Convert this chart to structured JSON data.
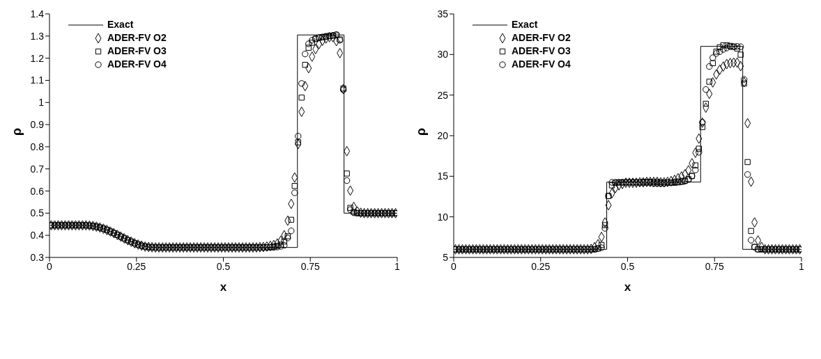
{
  "chart_data": [
    {
      "type": "scatter",
      "xlabel": "x",
      "ylabel": "ρ",
      "xlim": [
        0,
        1
      ],
      "ylim": [
        0.3,
        1.4
      ],
      "xticks": [
        0,
        0.25,
        0.5,
        0.75,
        1
      ],
      "yticks": [
        0.3,
        0.4,
        0.5,
        0.6,
        0.7,
        0.8,
        0.9,
        1,
        1.1,
        1.2,
        1.3,
        1.4
      ],
      "legend": "top left",
      "x": [
        0.005,
        0.015,
        0.025,
        0.035,
        0.045,
        0.055,
        0.065,
        0.075,
        0.085,
        0.095,
        0.105,
        0.115,
        0.125,
        0.135,
        0.145,
        0.155,
        0.165,
        0.175,
        0.185,
        0.195,
        0.205,
        0.215,
        0.225,
        0.235,
        0.245,
        0.255,
        0.265,
        0.275,
        0.285,
        0.295,
        0.305,
        0.315,
        0.325,
        0.335,
        0.345,
        0.355,
        0.365,
        0.375,
        0.385,
        0.395,
        0.405,
        0.415,
        0.425,
        0.435,
        0.445,
        0.455,
        0.465,
        0.475,
        0.485,
        0.495,
        0.505,
        0.515,
        0.525,
        0.535,
        0.545,
        0.555,
        0.565,
        0.575,
        0.585,
        0.595,
        0.605,
        0.615,
        0.625,
        0.635,
        0.645,
        0.655,
        0.665,
        0.675,
        0.685,
        0.695,
        0.705,
        0.715,
        0.725,
        0.735,
        0.745,
        0.755,
        0.765,
        0.775,
        0.785,
        0.795,
        0.805,
        0.815,
        0.825,
        0.835,
        0.845,
        0.855,
        0.865,
        0.875,
        0.885,
        0.895,
        0.905,
        0.915,
        0.925,
        0.935,
        0.945,
        0.955,
        0.965,
        0.975,
        0.985,
        0.995
      ],
      "series": [
        {
          "name": "Exact",
          "type": "line",
          "color": "#000000",
          "marker": "none",
          "line_style": "solid",
          "x": [
            0,
            0.105,
            0.125,
            0.145,
            0.165,
            0.185,
            0.205,
            0.225,
            0.245,
            0.265,
            0.285,
            0.305,
            0.713,
            0.713,
            0.847,
            0.847,
            1
          ],
          "values": [
            0.445,
            0.445,
            0.442,
            0.435,
            0.424,
            0.41,
            0.394,
            0.378,
            0.364,
            0.353,
            0.347,
            0.345,
            0.345,
            1.305,
            1.305,
            0.5,
            0.5
          ]
        },
        {
          "name": "ADER-FV O2",
          "type": "scatter",
          "color": "#000000",
          "marker": "diamond",
          "values": [
            0.445,
            0.445,
            0.445,
            0.445,
            0.445,
            0.445,
            0.445,
            0.445,
            0.445,
            0.445,
            0.445,
            0.444,
            0.442,
            0.439,
            0.435,
            0.43,
            0.424,
            0.417,
            0.41,
            0.402,
            0.394,
            0.386,
            0.378,
            0.371,
            0.364,
            0.358,
            0.353,
            0.349,
            0.347,
            0.346,
            0.345,
            0.345,
            0.345,
            0.345,
            0.345,
            0.345,
            0.345,
            0.345,
            0.345,
            0.345,
            0.345,
            0.345,
            0.345,
            0.345,
            0.345,
            0.345,
            0.345,
            0.345,
            0.345,
            0.345,
            0.345,
            0.345,
            0.345,
            0.345,
            0.345,
            0.345,
            0.345,
            0.345,
            0.345,
            0.345,
            0.346,
            0.347,
            0.349,
            0.352,
            0.356,
            0.363,
            0.375,
            0.4,
            0.466,
            0.542,
            0.661,
            0.812,
            0.958,
            1.074,
            1.155,
            1.207,
            1.241,
            1.264,
            1.279,
            1.289,
            1.295,
            1.295,
            1.277,
            1.223,
            1.061,
            0.78,
            0.602,
            0.528,
            0.508,
            0.502,
            0.5,
            0.5,
            0.5,
            0.5,
            0.5,
            0.5,
            0.5,
            0.5,
            0.5,
            0.5
          ]
        },
        {
          "name": "ADER-FV O3",
          "type": "scatter",
          "color": "#000000",
          "marker": "square",
          "values": [
            0.445,
            0.445,
            0.445,
            0.445,
            0.445,
            0.445,
            0.445,
            0.445,
            0.445,
            0.445,
            0.445,
            0.444,
            0.442,
            0.439,
            0.435,
            0.43,
            0.424,
            0.417,
            0.41,
            0.402,
            0.394,
            0.386,
            0.378,
            0.371,
            0.364,
            0.358,
            0.353,
            0.349,
            0.347,
            0.346,
            0.345,
            0.345,
            0.345,
            0.345,
            0.345,
            0.345,
            0.345,
            0.345,
            0.345,
            0.345,
            0.345,
            0.345,
            0.345,
            0.345,
            0.345,
            0.345,
            0.345,
            0.345,
            0.345,
            0.345,
            0.345,
            0.345,
            0.345,
            0.345,
            0.345,
            0.345,
            0.345,
            0.345,
            0.345,
            0.345,
            0.345,
            0.345,
            0.346,
            0.347,
            0.349,
            0.352,
            0.358,
            0.372,
            0.396,
            0.47,
            0.623,
            0.82,
            1.022,
            1.17,
            1.247,
            1.27,
            1.287,
            1.292,
            1.295,
            1.297,
            1.3,
            1.302,
            1.303,
            1.285,
            1.063,
            0.679,
            0.524,
            0.505,
            0.5,
            0.5,
            0.5,
            0.5,
            0.5,
            0.5,
            0.5,
            0.5,
            0.5,
            0.5,
            0.5,
            0.5
          ]
        },
        {
          "name": "ADER-FV O4",
          "type": "scatter",
          "color": "#000000",
          "marker": "circle",
          "values": [
            0.445,
            0.445,
            0.445,
            0.445,
            0.445,
            0.445,
            0.445,
            0.445,
            0.445,
            0.445,
            0.445,
            0.444,
            0.442,
            0.439,
            0.435,
            0.43,
            0.424,
            0.417,
            0.41,
            0.402,
            0.394,
            0.386,
            0.378,
            0.371,
            0.364,
            0.358,
            0.353,
            0.349,
            0.347,
            0.346,
            0.345,
            0.345,
            0.345,
            0.345,
            0.345,
            0.345,
            0.345,
            0.345,
            0.345,
            0.345,
            0.345,
            0.345,
            0.345,
            0.345,
            0.345,
            0.345,
            0.345,
            0.345,
            0.345,
            0.345,
            0.345,
            0.345,
            0.345,
            0.345,
            0.345,
            0.345,
            0.345,
            0.345,
            0.345,
            0.345,
            0.345,
            0.345,
            0.345,
            0.345,
            0.345,
            0.347,
            0.35,
            0.355,
            0.388,
            0.42,
            0.592,
            0.848,
            1.086,
            1.219,
            1.265,
            1.281,
            1.289,
            1.293,
            1.296,
            1.299,
            1.301,
            1.303,
            1.307,
            1.281,
            1.057,
            0.647,
            0.516,
            0.502,
            0.5,
            0.5,
            0.5,
            0.5,
            0.5,
            0.5,
            0.5,
            0.5,
            0.5,
            0.5,
            0.5,
            0.5
          ]
        }
      ]
    },
    {
      "type": "scatter",
      "xlabel": "x",
      "ylabel": "ρ",
      "xlim": [
        0,
        1
      ],
      "ylim": [
        5,
        35
      ],
      "xticks": [
        0,
        0.25,
        0.5,
        0.75,
        1
      ],
      "yticks": [
        5,
        10,
        15,
        20,
        25,
        30,
        35
      ],
      "legend": "top left",
      "x": [
        0.005,
        0.015,
        0.025,
        0.035,
        0.045,
        0.055,
        0.065,
        0.075,
        0.085,
        0.095,
        0.105,
        0.115,
        0.125,
        0.135,
        0.145,
        0.155,
        0.165,
        0.175,
        0.185,
        0.195,
        0.205,
        0.215,
        0.225,
        0.235,
        0.245,
        0.255,
        0.265,
        0.275,
        0.285,
        0.295,
        0.305,
        0.315,
        0.325,
        0.335,
        0.345,
        0.355,
        0.365,
        0.375,
        0.385,
        0.395,
        0.405,
        0.415,
        0.425,
        0.435,
        0.445,
        0.455,
        0.465,
        0.475,
        0.485,
        0.495,
        0.505,
        0.515,
        0.525,
        0.535,
        0.545,
        0.555,
        0.565,
        0.575,
        0.585,
        0.595,
        0.605,
        0.615,
        0.625,
        0.635,
        0.645,
        0.655,
        0.665,
        0.675,
        0.685,
        0.695,
        0.705,
        0.715,
        0.725,
        0.735,
        0.745,
        0.755,
        0.765,
        0.775,
        0.785,
        0.795,
        0.805,
        0.815,
        0.825,
        0.835,
        0.845,
        0.855,
        0.865,
        0.875,
        0.885,
        0.895,
        0.905,
        0.915,
        0.925,
        0.935,
        0.945,
        0.955,
        0.965,
        0.975,
        0.985,
        0.995
      ],
      "series": [
        {
          "name": "Exact",
          "type": "line",
          "color": "#000000",
          "marker": "none",
          "line_style": "solid",
          "x": [
            0,
            0.44,
            0.44,
            0.71,
            0.71,
            0.831,
            0.831,
            1
          ],
          "values": [
            6,
            6,
            14.28,
            14.28,
            31,
            31,
            6,
            6
          ]
        },
        {
          "name": "ADER-FV O2",
          "type": "scatter",
          "color": "#000000",
          "marker": "diamond",
          "values": [
            6,
            6,
            6,
            6,
            6,
            6,
            6,
            6,
            6,
            6,
            6,
            6,
            6,
            6,
            6,
            6,
            6,
            6,
            6,
            6,
            6,
            6,
            6,
            6,
            6,
            6,
            6,
            6,
            6,
            6,
            6,
            6,
            6,
            6,
            6,
            6,
            6,
            6,
            6,
            6.05,
            6.26,
            6.63,
            7.52,
            9.31,
            11.44,
            12.9,
            13.55,
            13.88,
            14.05,
            14.2,
            14.2,
            14.2,
            14.2,
            14.25,
            14.25,
            14.3,
            14.3,
            14.3,
            14.3,
            14.25,
            14.25,
            14.3,
            14.4,
            14.55,
            14.75,
            14.97,
            15.25,
            15.73,
            16.6,
            17.9,
            19.64,
            21.6,
            23.45,
            25.15,
            26.56,
            27.54,
            28.13,
            28.52,
            28.82,
            28.95,
            29.0,
            29.0,
            28.56,
            26.6,
            21.53,
            14.33,
            9.31,
            7.09,
            6.3,
            6,
            6,
            6,
            6,
            6,
            6,
            6,
            6,
            6,
            6,
            6
          ]
        },
        {
          "name": "ADER-FV O3",
          "type": "scatter",
          "color": "#000000",
          "marker": "square",
          "values": [
            6,
            6,
            6,
            6,
            6,
            6,
            6,
            6,
            6,
            6,
            6,
            6,
            6,
            6,
            6,
            6,
            6,
            6,
            6,
            6,
            6,
            6,
            6,
            6,
            6,
            6,
            6,
            6,
            6,
            6,
            6,
            6,
            6,
            6,
            6,
            6,
            6,
            6,
            6,
            6,
            6,
            6.1,
            6.54,
            8.98,
            12.57,
            13.88,
            14.2,
            14.25,
            14.25,
            14.25,
            14.25,
            14.25,
            14.25,
            14.25,
            14.3,
            14.3,
            14.3,
            14.3,
            14.3,
            14.25,
            14.25,
            14.25,
            14.2,
            14.2,
            14.25,
            14.3,
            14.45,
            14.64,
            15.03,
            16.34,
            18.4,
            21.06,
            23.93,
            26.65,
            28.93,
            30.35,
            30.89,
            31.13,
            31.13,
            31.06,
            30.96,
            30.74,
            29.98,
            26.43,
            16.75,
            8.26,
            6.3,
            6,
            6,
            6,
            6,
            6,
            6,
            6,
            6,
            6,
            6,
            6,
            6,
            6
          ]
        },
        {
          "name": "ADER-FV O4",
          "type": "scatter",
          "color": "#000000",
          "marker": "circle",
          "values": [
            6,
            6,
            6,
            6,
            6,
            6,
            6,
            6,
            6,
            6,
            6,
            6,
            6,
            6,
            6,
            6,
            6,
            6,
            6,
            6,
            6,
            6,
            6,
            6,
            6,
            6,
            6,
            6,
            6,
            6,
            6,
            6,
            6,
            6,
            6,
            6,
            6,
            6,
            6,
            6,
            6,
            6.1,
            6.2,
            8.59,
            12.57,
            14.25,
            14.25,
            14.25,
            14.25,
            14.25,
            14.25,
            14.25,
            14.25,
            14.2,
            14.2,
            14.2,
            14.2,
            14.1,
            14.1,
            14.1,
            14.1,
            14.2,
            14.2,
            14.3,
            14.35,
            14.4,
            14.4,
            14.6,
            15.03,
            15.77,
            17.95,
            21.64,
            25.69,
            28.52,
            29.6,
            30.13,
            30.35,
            30.63,
            30.8,
            30.96,
            30.96,
            31.0,
            30.96,
            26.93,
            15.22,
            7.13,
            6.26,
            6,
            6,
            6,
            6,
            6,
            6,
            6,
            6,
            6,
            6,
            6,
            6,
            6
          ]
        }
      ]
    }
  ]
}
